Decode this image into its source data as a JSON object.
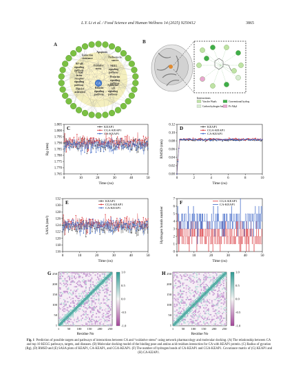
{
  "header": {
    "journal": "L.Y. Li et al. / Food Science and Human Wellness 14 (2025) 9250412",
    "page": "3865"
  },
  "panelA": {
    "label": "A",
    "center": "CA",
    "pathways": [
      "Endocrine resistance",
      "Apoptosis",
      "Pathways in cancer",
      "NF-κB signaling pathway",
      "NRF2 signaling pathway",
      "Oxidative stress",
      "C-type lectin receptor signaling pathway",
      "Prolactin signaling pathway",
      "Platelet activation",
      "Relaxin signaling pathway",
      "Epithelial cell signaling pathway"
    ]
  },
  "panelB": {
    "label": "B",
    "legend_title": "Interactions",
    "legend": [
      {
        "name": "Van der Waals",
        "color": "#bfe3a5"
      },
      {
        "name": "Conventional hydrogen bond",
        "color": "#3fae49"
      },
      {
        "name": "Carbon hydrogen bond",
        "color": "#d9ecd3"
      },
      {
        "name": "Pi-Alkyl",
        "color": "#e8a6d0"
      }
    ]
  },
  "chart_data": [
    {
      "panel": "C",
      "type": "line",
      "xlabel": "Time (ns)",
      "ylabel": "Rg (nm)",
      "xlim": [
        0,
        50
      ],
      "ylim": [
        1.765,
        1.805
      ],
      "xticks": [
        "0",
        "10",
        "20",
        "30",
        "40",
        "50"
      ],
      "yticks": [
        "1.805",
        "1.800",
        "1.795",
        "1.790",
        "1.785",
        "1.780",
        "1.775",
        "1.770",
        "1.765"
      ],
      "series": [
        {
          "name": "KEAP1",
          "color": "#444444",
          "mean": 1.789
        },
        {
          "name": "CGA-KEAP1",
          "color": "#d9343a",
          "mean": 1.791
        },
        {
          "name": "CA-KEAP1",
          "color": "#3a64c6",
          "mean": 1.788
        }
      ]
    },
    {
      "panel": "D",
      "type": "line",
      "xlabel": "Time (ns)",
      "ylabel": "RMSD (nm)",
      "xlim": [
        0,
        10
      ],
      "ylim": [
        0,
        0.12
      ],
      "xticks": [
        "0",
        "2",
        "4",
        "6",
        "8",
        "10"
      ],
      "yticks": [
        "0.12",
        "0.10",
        "0.08",
        "0.06",
        "0.04",
        "0.02",
        "0.00"
      ],
      "series": [
        {
          "name": "KEAP1",
          "color": "#444444",
          "mean": 0.082
        },
        {
          "name": "CGA-KEAP1",
          "color": "#d9343a",
          "mean": 0.084
        },
        {
          "name": "CA-KEAP1",
          "color": "#3a64c6",
          "mean": 0.083
        }
      ]
    },
    {
      "panel": "E",
      "type": "line",
      "xlabel": "Time (ns)",
      "ylabel": "SASA (nm²)",
      "xlim": [
        0,
        50
      ],
      "ylim": [
        116,
        132
      ],
      "xticks": [
        "0",
        "10",
        "20",
        "30",
        "40",
        "50"
      ],
      "yticks": [
        "132",
        "130",
        "128",
        "126",
        "124",
        "122",
        "120",
        "118",
        "116"
      ],
      "series": [
        {
          "name": "KEAP1",
          "color": "#444444",
          "mean": 123.5
        },
        {
          "name": "CGA-KEAP1",
          "color": "#d9343a",
          "mean": 124.5
        },
        {
          "name": "CA-KEAP1",
          "color": "#3a64c6",
          "mean": 123.8
        }
      ]
    },
    {
      "panel": "F",
      "type": "line",
      "xlabel": "Time (ns)",
      "ylabel": "Hydrogen bonds number",
      "xlim": [
        0,
        50
      ],
      "ylim": [
        0,
        7
      ],
      "xticks": [
        "0",
        "10",
        "20",
        "30",
        "40",
        "50"
      ],
      "yticks": [
        "7",
        "6",
        "5",
        "4",
        "3",
        "2",
        "1",
        "0"
      ],
      "series": [
        {
          "name": "CGA-KEAP1",
          "color": "#d9343a",
          "mean": 2.2
        },
        {
          "name": "CA-KEAP1",
          "color": "#3a64c6",
          "mean": 4.0
        }
      ]
    },
    {
      "panel": "G",
      "type": "heatmap",
      "xlabel": "Residue No",
      "ylabel": "",
      "xticks": [
        "1",
        "50",
        "100",
        "150",
        "200",
        "250"
      ],
      "yticks": [
        "250",
        "200",
        "150",
        "100",
        "50",
        "1"
      ],
      "colorbar": [
        "1.0",
        "0.5",
        "0.0",
        "-0.5",
        "-1.0"
      ]
    },
    {
      "panel": "H",
      "type": "heatmap",
      "xlabel": "Residue No",
      "ylabel": "",
      "xticks": [
        "1",
        "50",
        "100",
        "150",
        "200",
        "250"
      ],
      "yticks": [
        "250",
        "200",
        "150",
        "100",
        "50",
        "1"
      ],
      "colorbar": [
        "1.0",
        "0.5",
        "0.0",
        "-0.5",
        "-1.0"
      ]
    }
  ],
  "caption": {
    "lead": "Fig. 1",
    "text": "Prediction of possible targets and pathways of interactions between CA and “oxidative stress” using network pharmacology and molecular docking. (A) The relationship between CA and top 10 KEGG pathways, targets, and diseases. (B) Molecular docking model of the binding pose and amino acid residues interaction for CA with KEAP1 protein. (C) Radius of gyration (Rg), (D) RMSD and (E) SASA plots of KEAP1, CA-KEAP1, and CGA-KEAP1. (F) The number of hydrogen bonds of CA-KEAP1 and CGA-KEAP1. Covariance matrix of (G) KEAP1 and (H) CA-KEAP1."
  }
}
